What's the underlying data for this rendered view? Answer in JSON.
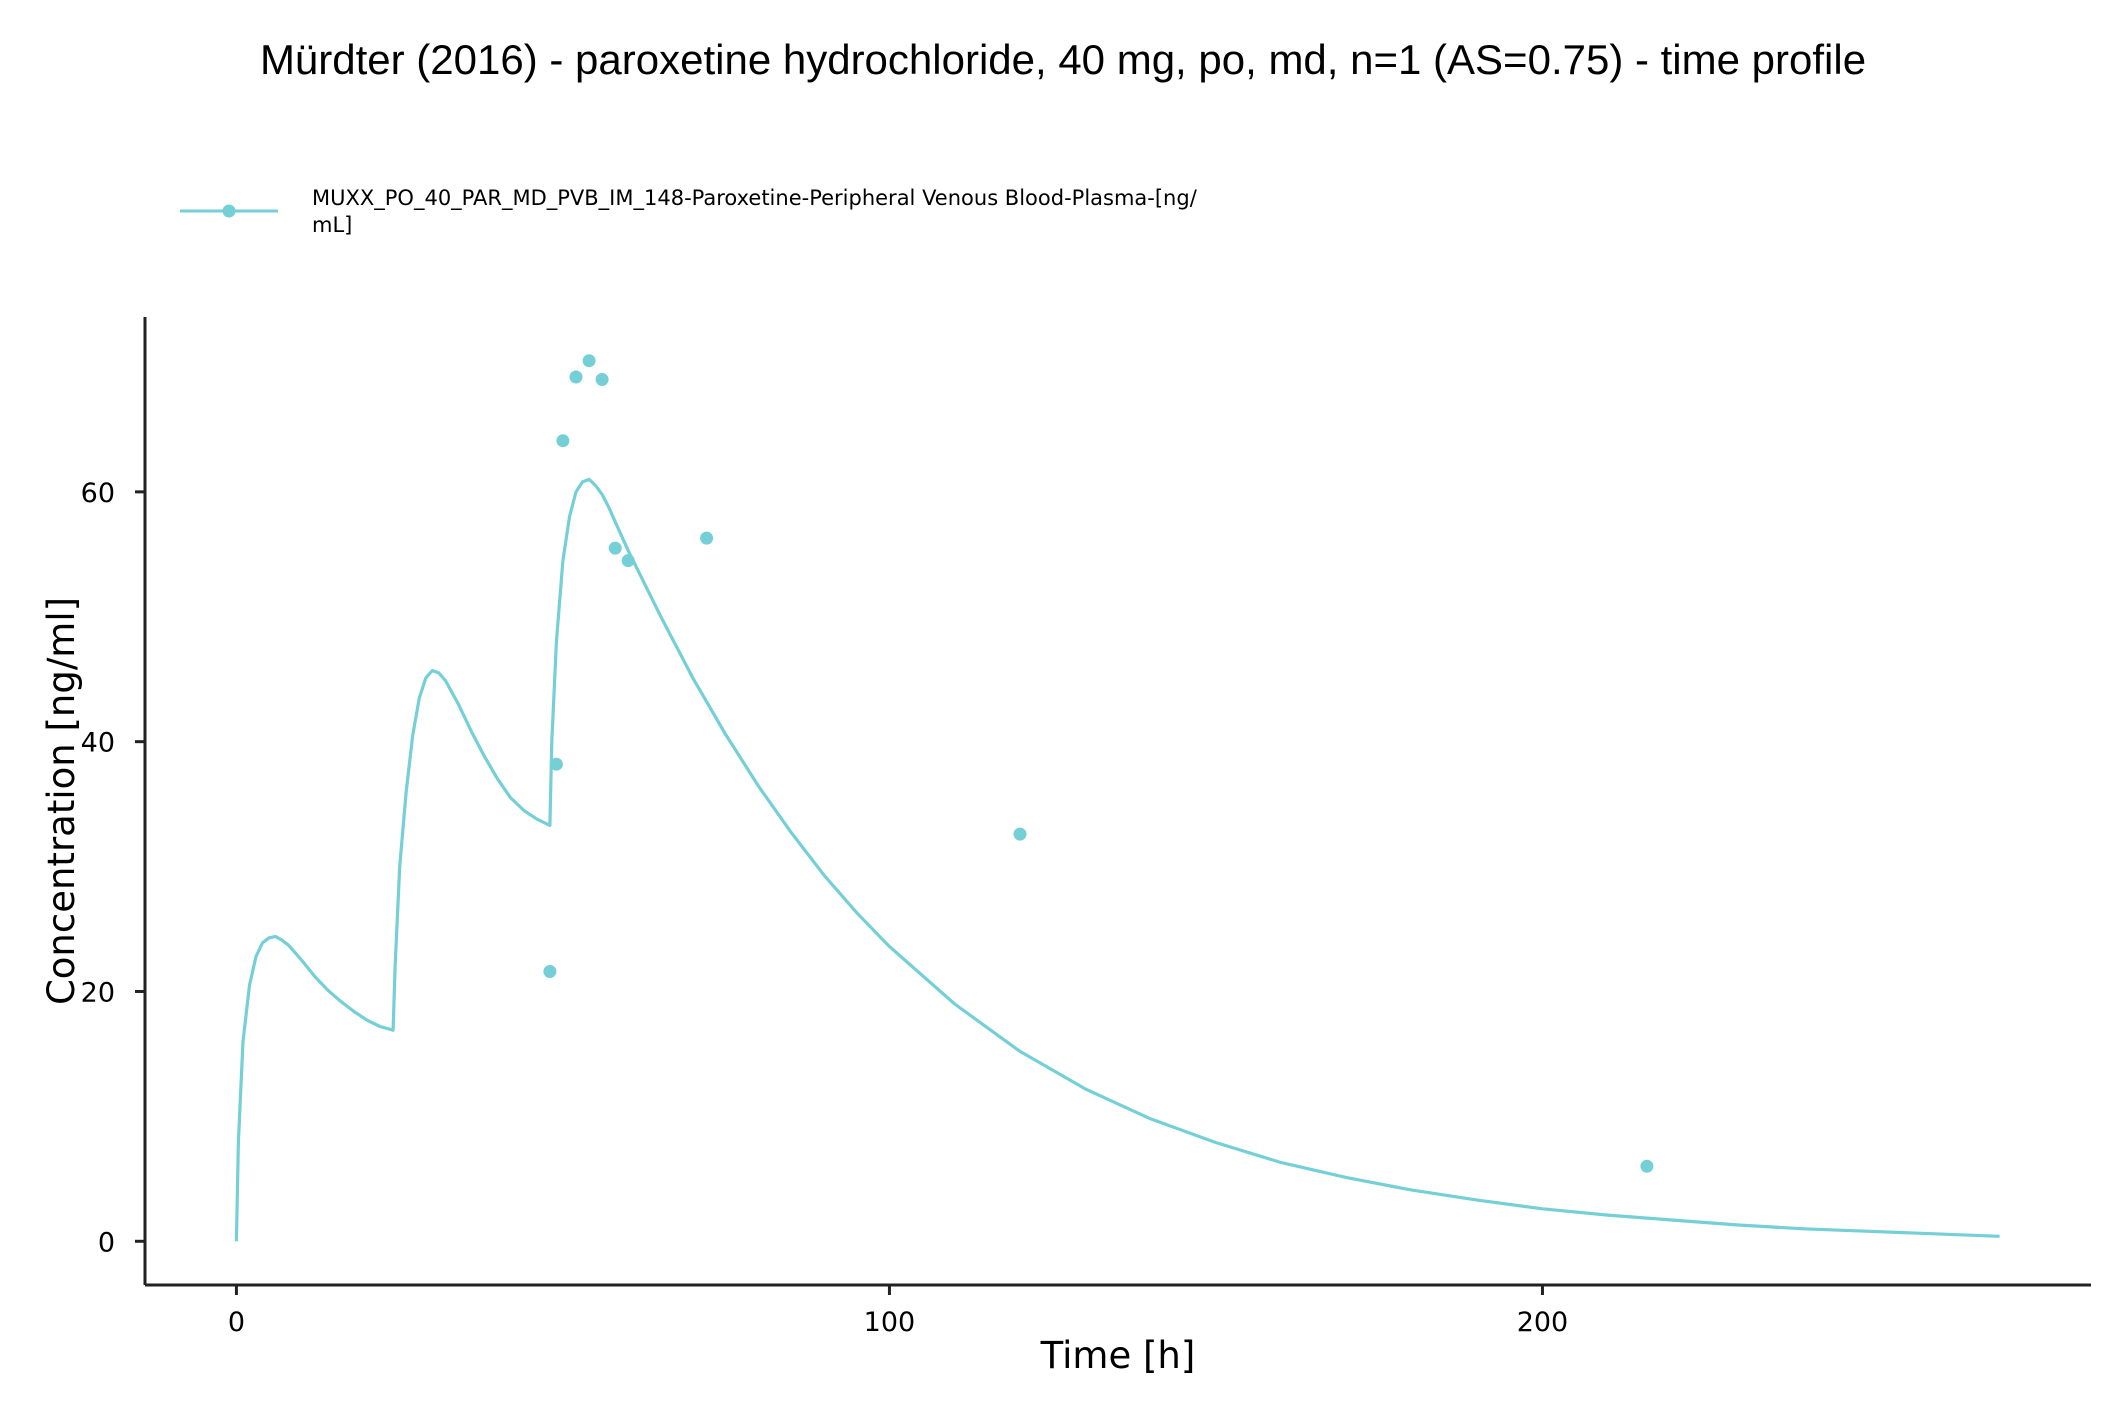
{
  "chart_data": {
    "type": "line",
    "title": "Mürdter (2016) - paroxetine hydrochloride, 40 mg, po, md, n=1 (AS=0.75) - time profile",
    "xlabel": "Time [h]",
    "ylabel": "Concentration [ng/ml]",
    "xlim": [
      -14,
      284
    ],
    "ylim": [
      -3.5,
      74
    ],
    "x_ticks": [
      0,
      100,
      200
    ],
    "y_ticks": [
      0,
      20,
      40,
      60
    ],
    "x_tick_labels": [
      "0",
      "100",
      "200"
    ],
    "y_tick_labels": [
      "0",
      "20",
      "40",
      "60"
    ],
    "grid": false,
    "legend_position": "top-left",
    "legend": {
      "line1": "MUXX_PO_40_PAR_MD_PVB_IM_148-Paroxetine-Peripheral Venous Blood-Plasma-[ng/",
      "line2": "mL]"
    },
    "colors": {
      "series": "#74cfd6",
      "axis": "#222222"
    },
    "series": [
      {
        "name": "MUXX_PO_40_PAR_MD_PVB_IM_148-Paroxetine-Peripheral Venous Blood-Plasma-[ng/mL]",
        "kind": "simulated-line",
        "x": [
          0,
          0.3,
          1,
          2,
          3,
          4,
          5,
          6,
          7,
          8,
          10,
          12,
          14,
          16,
          18,
          20,
          22,
          24,
          24.3,
          25,
          26,
          27,
          28,
          29,
          30,
          31,
          32,
          34,
          36,
          38,
          40,
          42,
          44,
          46,
          48,
          48.3,
          49,
          50,
          51,
          52,
          53,
          54,
          55,
          56,
          57,
          58,
          60,
          65,
          70,
          75,
          80,
          85,
          90,
          95,
          100,
          110,
          120,
          130,
          140,
          150,
          160,
          170,
          180,
          190,
          200,
          210,
          220,
          230,
          240,
          250,
          260,
          270
        ],
        "y": [
          0,
          8,
          16,
          20.5,
          22.8,
          23.9,
          24.3,
          24.4,
          24.1,
          23.7,
          22.5,
          21.2,
          20.1,
          19.2,
          18.4,
          17.7,
          17.2,
          16.9,
          22,
          30,
          36,
          40.5,
          43.5,
          45.1,
          45.7,
          45.5,
          44.9,
          43.0,
          40.8,
          38.8,
          37.0,
          35.5,
          34.5,
          33.8,
          33.3,
          40,
          48,
          54.5,
          58,
          60,
          60.8,
          61.0,
          60.5,
          59.8,
          58.8,
          57.6,
          55.3,
          50.0,
          45.0,
          40.5,
          36.4,
          32.7,
          29.3,
          26.3,
          23.6,
          19.0,
          15.2,
          12.2,
          9.8,
          7.9,
          6.3,
          5.1,
          4.1,
          3.3,
          2.6,
          2.1,
          1.7,
          1.3,
          1.0,
          0.8,
          0.6,
          0.4
        ]
      },
      {
        "name": "MUXX_PO_40_PAR_MD_PVB_IM_148-Paroxetine-Peripheral Venous Blood-Plasma-[ng/mL]",
        "kind": "observed-points",
        "x": [
          48,
          49,
          50,
          52,
          54,
          56,
          58,
          60,
          72,
          120,
          216
        ],
        "y": [
          21.6,
          38.2,
          64.1,
          69.2,
          70.5,
          69.0,
          55.5,
          54.5,
          56.3,
          32.6,
          6.0
        ]
      }
    ]
  }
}
